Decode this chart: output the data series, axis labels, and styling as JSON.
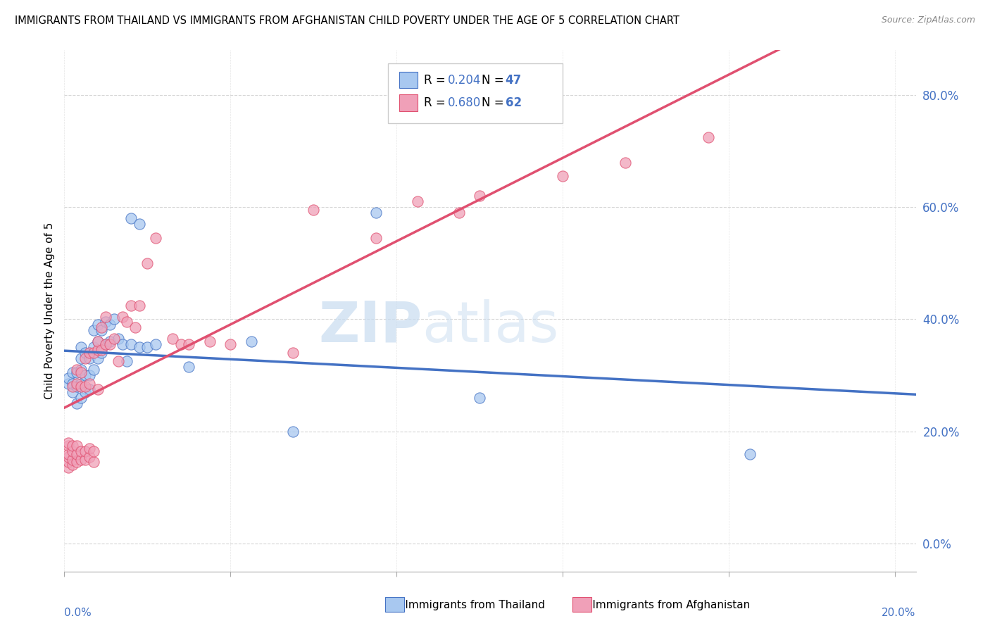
{
  "title": "IMMIGRANTS FROM THAILAND VS IMMIGRANTS FROM AFGHANISTAN CHILD POVERTY UNDER THE AGE OF 5 CORRELATION CHART",
  "source": "Source: ZipAtlas.com",
  "ylabel": "Child Poverty Under the Age of 5",
  "xlim": [
    0.0,
    0.205
  ],
  "ylim": [
    -0.05,
    0.88
  ],
  "yticks": [
    0.0,
    0.2,
    0.4,
    0.6,
    0.8
  ],
  "ytick_labels": [
    "0.0%",
    "20.0%",
    "40.0%",
    "60.0%",
    "80.0%"
  ],
  "xticks": [
    0.0,
    0.04,
    0.08,
    0.12,
    0.16,
    0.2
  ],
  "color_thailand": "#A8C8F0",
  "color_afghanistan": "#F0A0B8",
  "color_line_thailand": "#4472C4",
  "color_line_afghanistan": "#E05070",
  "watermark_zip": "ZIP",
  "watermark_atlas": "atlas",
  "thailand_x": [
    0.001,
    0.001,
    0.002,
    0.002,
    0.002,
    0.003,
    0.003,
    0.003,
    0.004,
    0.004,
    0.004,
    0.004,
    0.004,
    0.005,
    0.005,
    0.005,
    0.006,
    0.006,
    0.006,
    0.007,
    0.007,
    0.007,
    0.008,
    0.008,
    0.008,
    0.009,
    0.009,
    0.01,
    0.01,
    0.011,
    0.011,
    0.012,
    0.013,
    0.014,
    0.015,
    0.016,
    0.016,
    0.018,
    0.018,
    0.02,
    0.022,
    0.03,
    0.045,
    0.055,
    0.075,
    0.1,
    0.165
  ],
  "thailand_y": [
    0.285,
    0.295,
    0.27,
    0.285,
    0.305,
    0.25,
    0.28,
    0.305,
    0.26,
    0.285,
    0.31,
    0.33,
    0.35,
    0.27,
    0.3,
    0.34,
    0.275,
    0.3,
    0.33,
    0.31,
    0.35,
    0.38,
    0.33,
    0.36,
    0.39,
    0.34,
    0.38,
    0.355,
    0.395,
    0.36,
    0.39,
    0.4,
    0.365,
    0.355,
    0.325,
    0.355,
    0.58,
    0.57,
    0.35,
    0.35,
    0.355,
    0.315,
    0.36,
    0.2,
    0.59,
    0.26,
    0.16
  ],
  "afghanistan_x": [
    0.001,
    0.001,
    0.001,
    0.001,
    0.001,
    0.001,
    0.002,
    0.002,
    0.002,
    0.002,
    0.002,
    0.003,
    0.003,
    0.003,
    0.003,
    0.003,
    0.004,
    0.004,
    0.004,
    0.004,
    0.005,
    0.005,
    0.005,
    0.005,
    0.006,
    0.006,
    0.006,
    0.006,
    0.007,
    0.007,
    0.007,
    0.008,
    0.008,
    0.008,
    0.009,
    0.009,
    0.01,
    0.01,
    0.011,
    0.012,
    0.013,
    0.014,
    0.015,
    0.016,
    0.017,
    0.018,
    0.02,
    0.022,
    0.026,
    0.028,
    0.03,
    0.035,
    0.04,
    0.055,
    0.06,
    0.075,
    0.085,
    0.095,
    0.1,
    0.12,
    0.135,
    0.155
  ],
  "afghanistan_y": [
    0.135,
    0.145,
    0.155,
    0.16,
    0.175,
    0.18,
    0.14,
    0.15,
    0.165,
    0.175,
    0.28,
    0.145,
    0.16,
    0.175,
    0.285,
    0.31,
    0.15,
    0.165,
    0.28,
    0.305,
    0.15,
    0.165,
    0.28,
    0.33,
    0.155,
    0.17,
    0.285,
    0.34,
    0.145,
    0.165,
    0.34,
    0.275,
    0.345,
    0.36,
    0.345,
    0.385,
    0.355,
    0.405,
    0.355,
    0.365,
    0.325,
    0.405,
    0.395,
    0.425,
    0.385,
    0.425,
    0.5,
    0.545,
    0.365,
    0.355,
    0.355,
    0.36,
    0.355,
    0.34,
    0.595,
    0.545,
    0.61,
    0.59,
    0.62,
    0.655,
    0.68,
    0.725
  ]
}
